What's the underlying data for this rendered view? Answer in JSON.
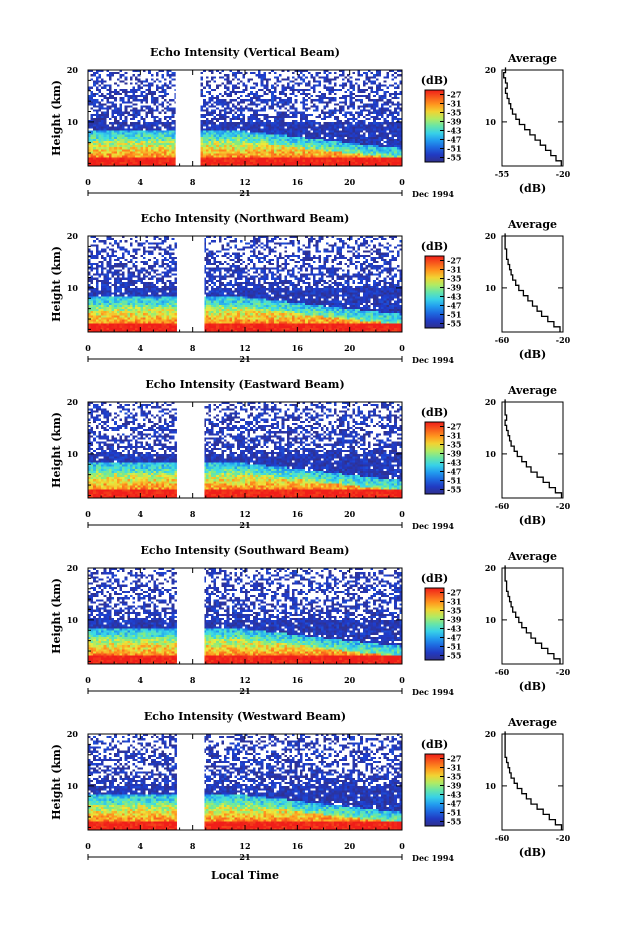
{
  "figure": {
    "date_label": "Dec 1994",
    "day_label": "21",
    "xlabel": "Local Time",
    "ylabel": "Height (km)",
    "colorbar_unit": "(dB)",
    "average_title": "Average",
    "average_xlabel": "(dB)"
  },
  "chart_data": [
    {
      "type": "heatmap",
      "title": "Echo Intensity (Vertical Beam)",
      "ylabel": "Height (km)",
      "x_ticks": [
        "0",
        "4",
        "8",
        "12",
        "16",
        "20",
        "0"
      ],
      "y_ticks": [
        "20",
        "10"
      ],
      "xlim": [
        0,
        24
      ],
      "ylim": [
        1.5,
        20
      ],
      "data_gap_hours": [
        6.7,
        8.6
      ],
      "colorbar": {
        "unit": "(dB)",
        "ticks": [
          "-27",
          "-31",
          "-35",
          "-39",
          "-43",
          "-47",
          "-51",
          "-55"
        ],
        "range": [
          -57,
          -25
        ]
      },
      "profile": {
        "title": "Average",
        "xlabel": "(dB)",
        "x_ticks": [
          "-55",
          "-20"
        ],
        "xlim": [
          -55,
          -20
        ],
        "y_ticks": [
          "20",
          "10"
        ],
        "heights": [
          2,
          3,
          4,
          5,
          6,
          7,
          8,
          9,
          10,
          11,
          12,
          13,
          14,
          15,
          16,
          17,
          18,
          19,
          20
        ],
        "values": [
          -21,
          -24,
          -27,
          -30,
          -33,
          -36,
          -39,
          -42,
          -45,
          -47,
          -49,
          -50,
          -51,
          -52,
          -53,
          -52,
          -53,
          -54,
          -53
        ]
      }
    },
    {
      "type": "heatmap",
      "title": "Echo Intensity (Northward Beam)",
      "ylabel": "Height (km)",
      "x_ticks": [
        "0",
        "4",
        "8",
        "12",
        "16",
        "20",
        "0"
      ],
      "y_ticks": [
        "20",
        "10"
      ],
      "xlim": [
        0,
        24
      ],
      "ylim": [
        1.5,
        20
      ],
      "data_gap_hours": [
        6.8,
        8.9
      ],
      "colorbar": {
        "unit": "(dB)",
        "ticks": [
          "-27",
          "-31",
          "-35",
          "-39",
          "-43",
          "-47",
          "-51",
          "-55"
        ],
        "range": [
          -57,
          -25
        ]
      },
      "profile": {
        "title": "Average",
        "xlabel": "(dB)",
        "x_ticks": [
          "-60",
          "-20"
        ],
        "xlim": [
          -60,
          -20
        ],
        "y_ticks": [
          "20",
          "10"
        ],
        "heights": [
          2,
          3,
          4,
          5,
          6,
          7,
          8,
          9,
          10,
          11,
          12,
          13,
          14,
          15,
          16,
          17,
          18,
          19,
          20
        ],
        "values": [
          -22,
          -26,
          -30,
          -34,
          -37,
          -40,
          -43,
          -46,
          -49,
          -51,
          -53,
          -54,
          -55,
          -56,
          -57,
          -57,
          -58,
          -58,
          -58
        ]
      }
    },
    {
      "type": "heatmap",
      "title": "Echo Intensity (Eastward Beam)",
      "ylabel": "Height (km)",
      "x_ticks": [
        "0",
        "4",
        "8",
        "12",
        "16",
        "20",
        "0"
      ],
      "y_ticks": [
        "20",
        "10"
      ],
      "xlim": [
        0,
        24
      ],
      "ylim": [
        1.5,
        20
      ],
      "data_gap_hours": [
        6.8,
        8.9
      ],
      "colorbar": {
        "unit": "(dB)",
        "ticks": [
          "-27",
          "-31",
          "-35",
          "-39",
          "-43",
          "-47",
          "-51",
          "-55"
        ],
        "range": [
          -57,
          -25
        ]
      },
      "profile": {
        "title": "Average",
        "xlabel": "(dB)",
        "x_ticks": [
          "-60",
          "-20"
        ],
        "xlim": [
          -60,
          -20
        ],
        "y_ticks": [
          "20",
          "10"
        ],
        "heights": [
          2,
          3,
          4,
          5,
          6,
          7,
          8,
          9,
          10,
          11,
          12,
          13,
          14,
          15,
          16,
          17,
          18,
          19,
          20
        ],
        "values": [
          -21,
          -25,
          -29,
          -33,
          -37,
          -41,
          -44,
          -47,
          -50,
          -52,
          -54,
          -55,
          -56,
          -57,
          -58,
          -57,
          -58,
          -58,
          -58
        ]
      }
    },
    {
      "type": "heatmap",
      "title": "Echo Intensity (Southward Beam)",
      "ylabel": "Height (km)",
      "x_ticks": [
        "0",
        "4",
        "8",
        "12",
        "16",
        "20",
        "0"
      ],
      "y_ticks": [
        "20",
        "10"
      ],
      "xlim": [
        0,
        24
      ],
      "ylim": [
        1.5,
        20
      ],
      "data_gap_hours": [
        6.8,
        8.9
      ],
      "colorbar": {
        "unit": "(dB)",
        "ticks": [
          "-27",
          "-31",
          "-35",
          "-39",
          "-43",
          "-47",
          "-51",
          "-55"
        ],
        "range": [
          -57,
          -25
        ]
      },
      "profile": {
        "title": "Average",
        "xlabel": "(dB)",
        "x_ticks": [
          "-60",
          "-20"
        ],
        "xlim": [
          -60,
          -20
        ],
        "y_ticks": [
          "20",
          "10"
        ],
        "heights": [
          2,
          3,
          4,
          5,
          6,
          7,
          8,
          9,
          10,
          11,
          12,
          13,
          14,
          15,
          16,
          17,
          18,
          19,
          20
        ],
        "values": [
          -22,
          -26,
          -30,
          -34,
          -38,
          -41,
          -44,
          -47,
          -49,
          -51,
          -53,
          -54,
          -55,
          -56,
          -57,
          -57,
          -58,
          -58,
          -58
        ]
      }
    },
    {
      "type": "heatmap",
      "title": "Echo Intensity (Westward Beam)",
      "ylabel": "Height (km)",
      "x_ticks": [
        "0",
        "4",
        "8",
        "12",
        "16",
        "20",
        "0"
      ],
      "y_ticks": [
        "20",
        "10"
      ],
      "xlim": [
        0,
        24
      ],
      "ylim": [
        1.5,
        20
      ],
      "data_gap_hours": [
        6.8,
        8.9
      ],
      "colorbar": {
        "unit": "(dB)",
        "ticks": [
          "-27",
          "-31",
          "-35",
          "-39",
          "-43",
          "-47",
          "-51",
          "-55"
        ],
        "range": [
          -57,
          -25
        ]
      },
      "profile": {
        "title": "Average",
        "xlabel": "(dB)",
        "x_ticks": [
          "-60",
          "-20"
        ],
        "xlim": [
          -60,
          -20
        ],
        "y_ticks": [
          "20",
          "10"
        ],
        "heights": [
          2,
          3,
          4,
          5,
          6,
          7,
          8,
          9,
          10,
          11,
          12,
          13,
          14,
          15,
          16,
          17,
          18,
          19,
          20
        ],
        "values": [
          -21,
          -25,
          -29,
          -33,
          -37,
          -41,
          -44,
          -47,
          -50,
          -52,
          -54,
          -55,
          -56,
          -57,
          -58,
          -58,
          -58,
          -58,
          -58
        ]
      }
    }
  ]
}
